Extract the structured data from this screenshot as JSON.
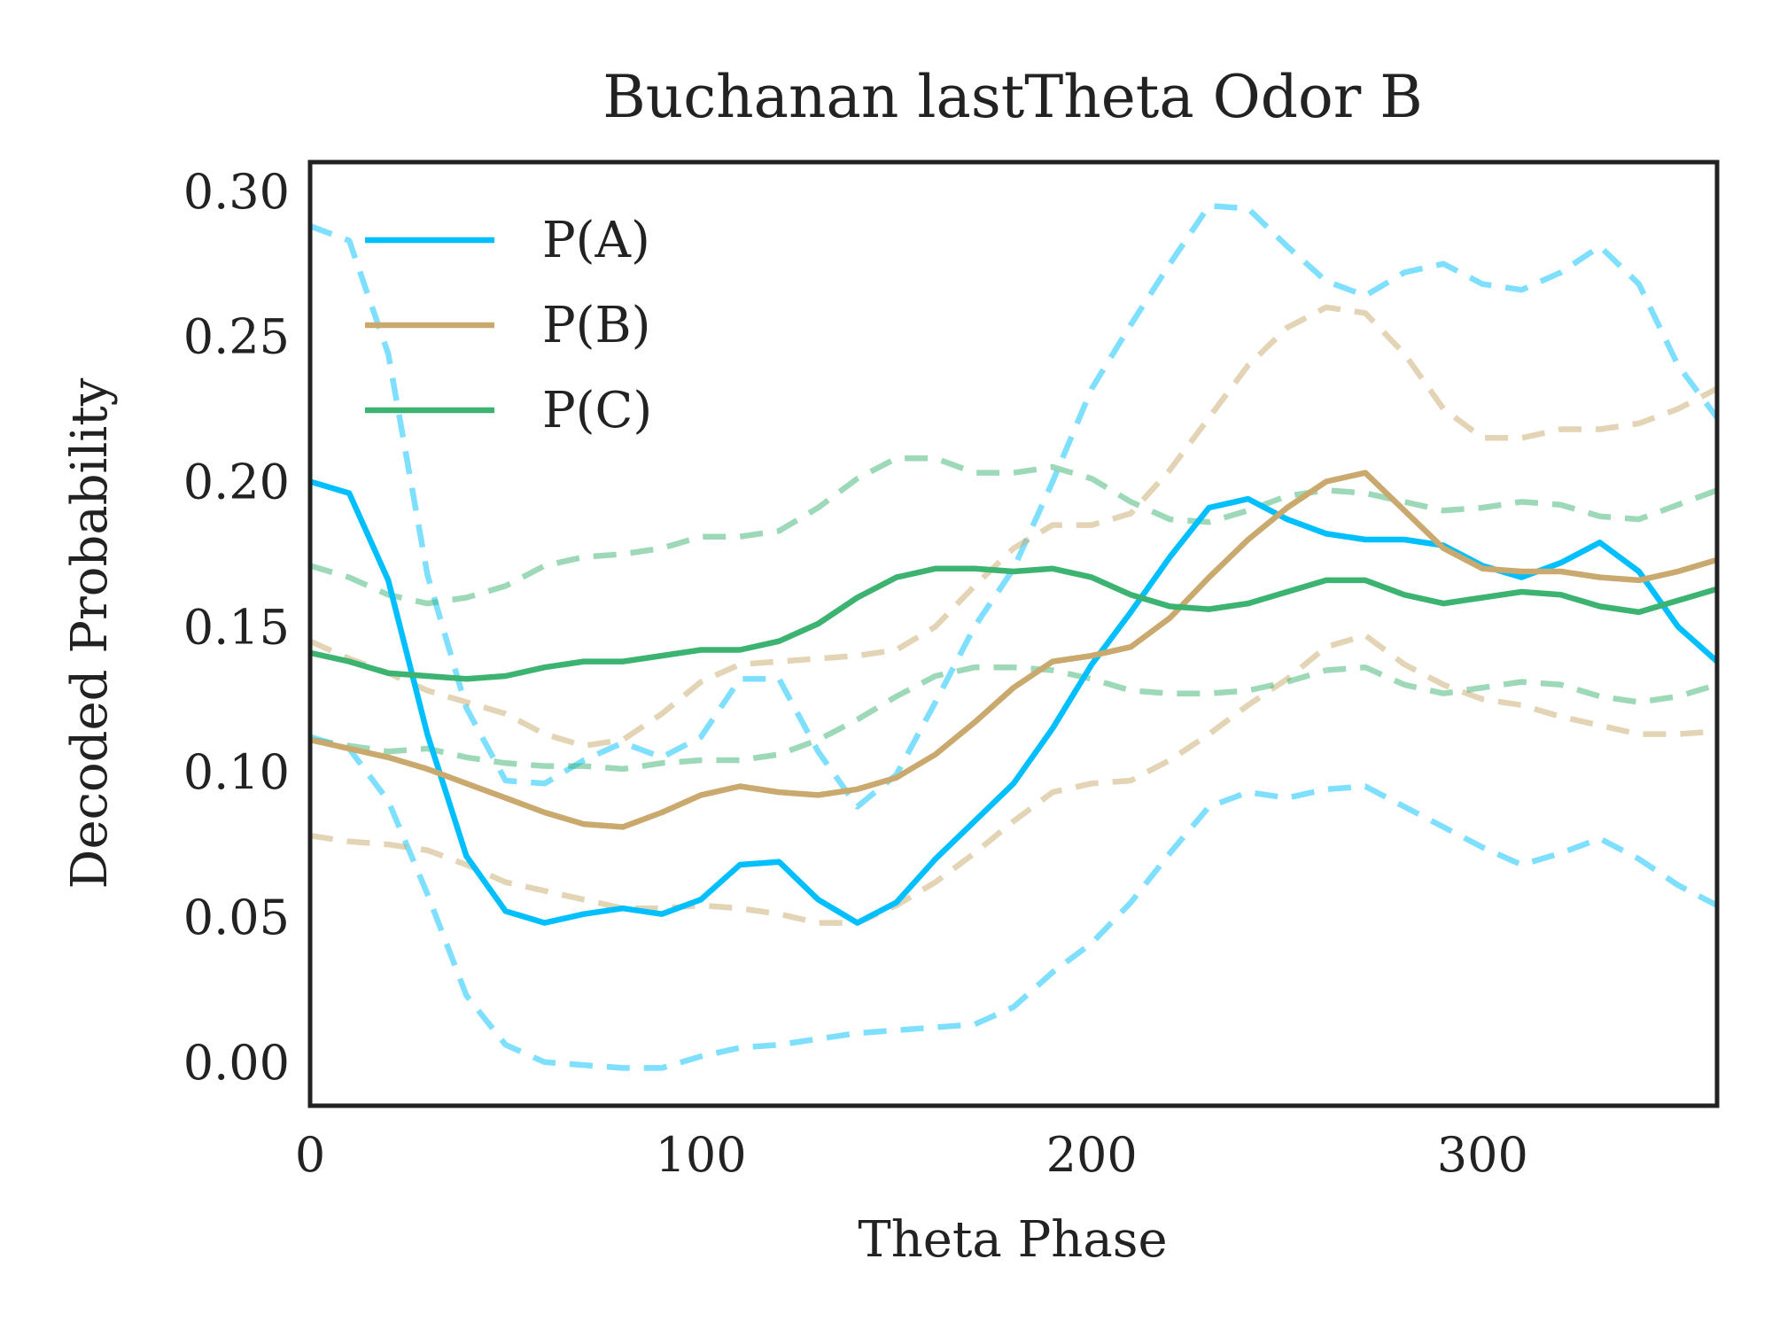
{
  "chart_data": {
    "type": "line",
    "title": "Buchanan lastTheta Odor B",
    "xlabel": "Theta Phase",
    "ylabel": "Decoded Probability",
    "xlim": [
      0,
      360
    ],
    "ylim": [
      -0.015,
      0.31
    ],
    "xticks": [
      0,
      100,
      200,
      300
    ],
    "yticks": [
      0.0,
      0.05,
      0.1,
      0.15,
      0.2,
      0.25,
      0.3
    ],
    "ytick_labels": [
      "0.00",
      "0.05",
      "0.10",
      "0.15",
      "0.20",
      "0.25",
      "0.30"
    ],
    "xtick_labels": [
      "0",
      "100",
      "200",
      "300"
    ],
    "grid": false,
    "legend_position": "top-left",
    "x": [
      0,
      10,
      20,
      30,
      40,
      50,
      60,
      70,
      80,
      90,
      100,
      110,
      120,
      130,
      140,
      150,
      160,
      170,
      180,
      190,
      200,
      210,
      220,
      230,
      240,
      250,
      260,
      270,
      280,
      290,
      300,
      310,
      320,
      330,
      340,
      350,
      360
    ],
    "series": [
      {
        "name": "P(A)",
        "color": "#00bfff",
        "values": [
          0.2,
          0.196,
          0.166,
          0.113,
          0.071,
          0.052,
          0.048,
          0.051,
          0.053,
          0.051,
          0.056,
          0.068,
          0.069,
          0.056,
          0.048,
          0.055,
          0.07,
          0.083,
          0.096,
          0.115,
          0.137,
          0.155,
          0.174,
          0.191,
          0.194,
          0.187,
          0.182,
          0.18,
          0.18,
          0.178,
          0.171,
          0.167,
          0.172,
          0.179,
          0.169,
          0.15,
          0.138
        ],
        "upper": [
          0.288,
          0.283,
          0.244,
          0.168,
          0.122,
          0.097,
          0.096,
          0.104,
          0.11,
          0.105,
          0.112,
          0.132,
          0.132,
          0.107,
          0.088,
          0.099,
          0.124,
          0.15,
          0.17,
          0.2,
          0.232,
          0.254,
          0.275,
          0.295,
          0.294,
          0.281,
          0.269,
          0.264,
          0.272,
          0.275,
          0.268,
          0.266,
          0.272,
          0.281,
          0.268,
          0.24,
          0.222
        ],
        "lower": [
          0.112,
          0.108,
          0.09,
          0.058,
          0.023,
          0.006,
          0.0,
          -0.001,
          -0.002,
          -0.002,
          0.002,
          0.005,
          0.006,
          0.008,
          0.01,
          0.011,
          0.012,
          0.013,
          0.019,
          0.031,
          0.041,
          0.055,
          0.072,
          0.088,
          0.093,
          0.091,
          0.094,
          0.095,
          0.088,
          0.081,
          0.074,
          0.068,
          0.072,
          0.077,
          0.07,
          0.061,
          0.054
        ]
      },
      {
        "name": "P(B)",
        "color": "#c9a96e",
        "values": [
          0.111,
          0.108,
          0.105,
          0.101,
          0.096,
          0.091,
          0.086,
          0.082,
          0.081,
          0.086,
          0.092,
          0.095,
          0.093,
          0.092,
          0.094,
          0.098,
          0.106,
          0.117,
          0.129,
          0.138,
          0.14,
          0.143,
          0.153,
          0.167,
          0.18,
          0.191,
          0.2,
          0.203,
          0.19,
          0.177,
          0.17,
          0.169,
          0.169,
          0.167,
          0.166,
          0.169,
          0.173
        ],
        "upper": [
          0.145,
          0.139,
          0.134,
          0.128,
          0.124,
          0.12,
          0.113,
          0.109,
          0.111,
          0.12,
          0.131,
          0.137,
          0.138,
          0.139,
          0.14,
          0.142,
          0.15,
          0.164,
          0.177,
          0.185,
          0.185,
          0.189,
          0.204,
          0.222,
          0.24,
          0.253,
          0.26,
          0.258,
          0.244,
          0.225,
          0.215,
          0.215,
          0.218,
          0.218,
          0.22,
          0.225,
          0.232
        ],
        "lower": [
          0.078,
          0.076,
          0.075,
          0.073,
          0.068,
          0.062,
          0.059,
          0.056,
          0.053,
          0.053,
          0.054,
          0.053,
          0.051,
          0.048,
          0.048,
          0.054,
          0.062,
          0.072,
          0.083,
          0.093,
          0.096,
          0.097,
          0.104,
          0.113,
          0.123,
          0.132,
          0.143,
          0.147,
          0.137,
          0.13,
          0.125,
          0.123,
          0.119,
          0.116,
          0.113,
          0.113,
          0.114
        ]
      },
      {
        "name": "P(C)",
        "color": "#3cb371",
        "values": [
          0.141,
          0.138,
          0.134,
          0.133,
          0.132,
          0.133,
          0.136,
          0.138,
          0.138,
          0.14,
          0.142,
          0.142,
          0.145,
          0.151,
          0.16,
          0.167,
          0.17,
          0.17,
          0.169,
          0.17,
          0.167,
          0.161,
          0.157,
          0.156,
          0.158,
          0.162,
          0.166,
          0.166,
          0.161,
          0.158,
          0.16,
          0.162,
          0.161,
          0.157,
          0.155,
          0.159,
          0.163
        ],
        "upper": [
          0.171,
          0.167,
          0.161,
          0.158,
          0.16,
          0.164,
          0.171,
          0.174,
          0.175,
          0.177,
          0.181,
          0.181,
          0.183,
          0.191,
          0.201,
          0.208,
          0.208,
          0.203,
          0.203,
          0.205,
          0.201,
          0.193,
          0.187,
          0.186,
          0.19,
          0.195,
          0.197,
          0.196,
          0.193,
          0.19,
          0.191,
          0.193,
          0.192,
          0.188,
          0.187,
          0.192,
          0.197
        ],
        "lower": [
          0.111,
          0.109,
          0.107,
          0.108,
          0.105,
          0.103,
          0.102,
          0.102,
          0.101,
          0.103,
          0.104,
          0.104,
          0.106,
          0.111,
          0.118,
          0.126,
          0.133,
          0.136,
          0.136,
          0.135,
          0.132,
          0.128,
          0.127,
          0.127,
          0.128,
          0.131,
          0.135,
          0.136,
          0.13,
          0.127,
          0.129,
          0.131,
          0.13,
          0.126,
          0.124,
          0.126,
          0.13
        ]
      }
    ]
  }
}
